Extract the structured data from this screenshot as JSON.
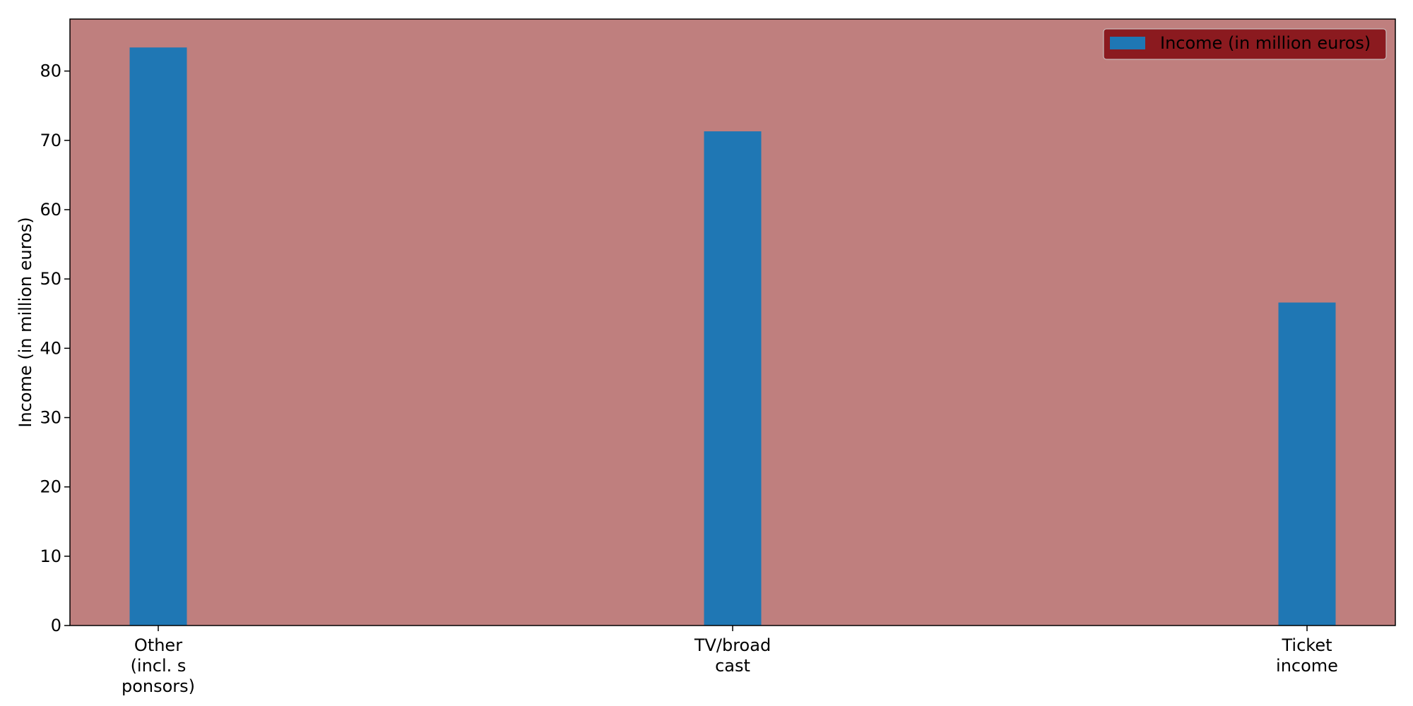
{
  "chart_data": {
    "type": "bar",
    "categories": [
      "Other\n(incl. s\nponsors)",
      "TV/broad\ncast",
      "Ticket\nincome"
    ],
    "series": [
      {
        "name": "Income (in million euros)",
        "values": [
          83.4,
          71.3,
          46.6
        ]
      }
    ],
    "title": "",
    "xlabel": "",
    "ylabel": "Income (in million euros)",
    "ylim": [
      0,
      87.5
    ],
    "yticks": [
      0,
      10,
      20,
      30,
      40,
      50,
      60,
      70,
      80
    ],
    "grid": false,
    "legend_position": "top-right",
    "colors": {
      "bar": "#1f77b4",
      "plot_background": "#bf7f7e",
      "legend_background": "#8b1a1f",
      "axis": "#000000"
    }
  }
}
